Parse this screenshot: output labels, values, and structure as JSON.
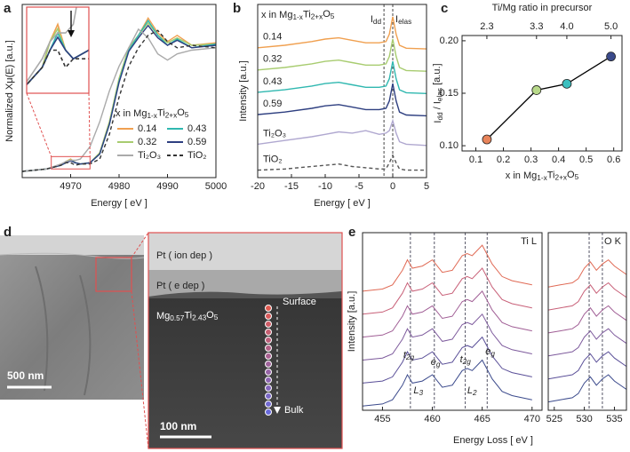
{
  "panel_labels": [
    "a",
    "b",
    "c",
    "d",
    "e"
  ],
  "chart_data": [
    {
      "type": "line",
      "ylabel": "Normalized Xμ(E) [a.u.]",
      "xlabel": "Energy  [ eV ]",
      "legend_title": [
        "x in Mg",
        "1-x",
        "Ti",
        "2+x",
        "O",
        "5"
      ],
      "x": [
        4960,
        4965,
        4968,
        4969,
        4970,
        4971,
        4972,
        4974,
        4976,
        4978,
        4980,
        4982,
        4984,
        4986,
        4988,
        4990,
        4992,
        4995,
        5000
      ],
      "xlim": [
        4960,
        5000
      ],
      "xticks": [
        4970,
        4980,
        4990,
        5000
      ],
      "ylim": [
        -0.05,
        1.35
      ],
      "inset": {
        "xlim": [
          4966,
          4974
        ],
        "ylim": [
          0.02,
          0.12
        ]
      },
      "series": [
        {
          "name": "0.14",
          "color": "#f0a050",
          "values": [
            0.0,
            0.02,
            0.05,
            0.08,
            0.1,
            0.07,
            0.06,
            0.07,
            0.15,
            0.4,
            0.75,
            1.0,
            1.1,
            1.24,
            1.12,
            1.05,
            1.1,
            1.02,
            1.04
          ]
        },
        {
          "name": "0.32",
          "color": "#a8cc70",
          "values": [
            0.0,
            0.02,
            0.05,
            0.08,
            0.095,
            0.07,
            0.06,
            0.07,
            0.15,
            0.4,
            0.75,
            1.0,
            1.1,
            1.2,
            1.1,
            1.04,
            1.08,
            1.02,
            1.03
          ]
        },
        {
          "name": "0.43",
          "color": "#30b8b0",
          "values": [
            0.0,
            0.02,
            0.05,
            0.07,
            0.09,
            0.07,
            0.06,
            0.07,
            0.14,
            0.38,
            0.73,
            0.98,
            1.1,
            1.22,
            1.1,
            1.02,
            1.07,
            1.0,
            1.03
          ]
        },
        {
          "name": "0.59",
          "color": "#2e3f80",
          "values": [
            0.0,
            0.02,
            0.05,
            0.07,
            0.085,
            0.07,
            0.06,
            0.07,
            0.14,
            0.38,
            0.72,
            0.97,
            1.08,
            1.18,
            1.08,
            1.02,
            1.06,
            1.0,
            1.02
          ]
        },
        {
          "name": "Ti₂O₃",
          "color": "#aaaaaa",
          "values": [
            0.0,
            0.02,
            0.06,
            0.08,
            0.09,
            0.09,
            0.1,
            0.2,
            0.4,
            0.65,
            0.85,
            1.0,
            1.15,
            1.08,
            0.95,
            0.9,
            0.95,
            0.98,
            1.0
          ]
        },
        {
          "name": "TiO₂",
          "color": "#333333",
          "dash": true,
          "values": [
            0.0,
            0.02,
            0.05,
            0.07,
            0.07,
            0.05,
            0.06,
            0.06,
            0.1,
            0.3,
            0.6,
            0.85,
            1.0,
            1.1,
            1.14,
            1.05,
            1.0,
            1.02,
            1.0
          ]
        }
      ]
    },
    {
      "type": "line",
      "ylabel": "Intensity [a.u.]",
      "xlabel": "Energy  [ eV ]",
      "legend_title": [
        "x in Mg",
        "1-x",
        "Ti",
        "2+x",
        "O",
        "5"
      ],
      "x": [
        -20,
        -16,
        -12,
        -10,
        -8,
        -6,
        -4,
        -2,
        -1,
        -0.5,
        0,
        0.5,
        1,
        2,
        5
      ],
      "xlim": [
        -20,
        5
      ],
      "xticks": [
        -20,
        -15,
        -10,
        -5,
        0,
        5
      ],
      "ylim": [
        0,
        7
      ],
      "markers": [
        -1.3,
        0
      ],
      "annotations": [
        [
          "I",
          "dd"
        ],
        [
          "I",
          "elas"
        ]
      ],
      "series": [
        {
          "name": "0.14",
          "color": "#f0a050",
          "values": [
            5.25,
            5.35,
            5.5,
            5.6,
            5.65,
            5.55,
            5.45,
            5.45,
            5.5,
            5.8,
            6.5,
            5.8,
            5.35,
            5.23,
            5.2
          ]
        },
        {
          "name": "0.32",
          "color": "#a8cc70",
          "values": [
            4.35,
            4.45,
            4.6,
            4.7,
            4.75,
            4.65,
            4.55,
            4.55,
            4.6,
            4.9,
            5.6,
            4.9,
            4.45,
            4.33,
            4.3
          ]
        },
        {
          "name": "0.43",
          "color": "#30b8b0",
          "values": [
            3.45,
            3.55,
            3.7,
            3.8,
            3.85,
            3.75,
            3.65,
            3.65,
            3.7,
            4.0,
            4.7,
            4.0,
            3.55,
            3.43,
            3.4
          ]
        },
        {
          "name": "0.59",
          "color": "#2e3f80",
          "values": [
            2.55,
            2.65,
            2.8,
            2.9,
            2.95,
            2.85,
            2.75,
            2.75,
            2.8,
            3.1,
            3.8,
            3.1,
            2.65,
            2.53,
            2.5
          ]
        },
        {
          "name": "Ti₂O₃",
          "color": "#b0a8d0",
          "values": [
            1.35,
            1.5,
            1.65,
            1.75,
            1.85,
            1.8,
            1.9,
            1.75,
            1.8,
            1.9,
            2.3,
            1.8,
            1.45,
            1.35,
            1.3
          ]
        },
        {
          "name": "TiO₂",
          "color": "#555555",
          "dash": true,
          "values": [
            0.3,
            0.35,
            0.45,
            0.5,
            0.55,
            0.45,
            0.4,
            0.35,
            0.35,
            0.6,
            0.9,
            0.6,
            0.35,
            0.3,
            0.3
          ]
        }
      ]
    },
    {
      "type": "scatter",
      "ylabel": [
        "I",
        "dd",
        " / I",
        "elas",
        " [a.u.]"
      ],
      "xlabel": [
        "x in Mg",
        "1-x",
        "Ti",
        "2+x",
        "O",
        "5"
      ],
      "x2label": "Ti/Mg ratio in precursor",
      "x": [
        0.14,
        0.32,
        0.43,
        0.59
      ],
      "values": [
        0.106,
        0.153,
        0.159,
        0.185
      ],
      "colors": [
        "#e8845a",
        "#b8d98a",
        "#3cbfbf",
        "#3a4a8a"
      ],
      "line_color": "#000000",
      "xlim": [
        0.05,
        0.63
      ],
      "xticks": [
        0.1,
        0.2,
        0.3,
        0.4,
        0.5,
        0.6
      ],
      "x2ticks": [
        {
          "value": 0.14,
          "label": "2.3"
        },
        {
          "value": 0.32,
          "label": "3.3"
        },
        {
          "value": 0.43,
          "label": "4.0"
        },
        {
          "value": 0.59,
          "label": "5.0"
        }
      ],
      "ylim": [
        0.095,
        0.205
      ],
      "yticks": [
        {
          "value": 0.1,
          "label": "0.10"
        },
        0.15,
        {
          "value": 0.2,
          "label": "0.20"
        }
      ]
    },
    {
      "type": "line",
      "ylabel": "Intensity [a.u.]",
      "xlabel": "Energy Loss  [ eV ]",
      "ylim": [
        0,
        8.5
      ],
      "annotations": [
        [
          "t",
          "2g"
        ],
        [
          "e",
          "g"
        ],
        [
          "t",
          "2g"
        ],
        [
          "e",
          "g"
        ],
        [
          "L",
          "3"
        ],
        [
          "L",
          "2"
        ]
      ],
      "panels": [
        {
          "title": "Ti L",
          "x": [
            453,
            455,
            456,
            457,
            457.5,
            458,
            459,
            460,
            461,
            462,
            463,
            463.5,
            464,
            465,
            466,
            467,
            468,
            470
          ],
          "xlim": [
            453,
            471
          ],
          "xticks": [
            455,
            460,
            465,
            470
          ],
          "markers": [
            457.8,
            460.2,
            463.3,
            465.5
          ],
          "series": [
            {
              "color": "#3b4a8c",
              "values": [
                0.2,
                0.3,
                0.5,
                1.2,
                1.7,
                1.3,
                1.4,
                1.7,
                1.1,
                1.2,
                1.9,
                2.0,
                1.9,
                2.4,
                1.5,
                0.9,
                0.7,
                0.5
              ]
            },
            {
              "color": "#5a4f98",
              "values": [
                1.3,
                1.4,
                1.6,
                2.3,
                2.8,
                2.4,
                2.5,
                2.8,
                2.2,
                2.3,
                3.0,
                3.1,
                3.0,
                3.5,
                2.6,
                2.0,
                1.8,
                1.6
              ]
            },
            {
              "color": "#7d5a9c",
              "values": [
                2.4,
                2.5,
                2.7,
                3.4,
                3.9,
                3.5,
                3.6,
                3.9,
                3.3,
                3.4,
                4.1,
                4.2,
                4.1,
                4.6,
                3.7,
                3.1,
                2.9,
                2.7
              ]
            },
            {
              "color": "#a05e95",
              "values": [
                3.5,
                3.6,
                3.8,
                4.5,
                5.0,
                4.6,
                4.7,
                5.0,
                4.4,
                4.5,
                5.2,
                5.3,
                5.2,
                5.7,
                4.8,
                4.2,
                4.0,
                3.8
              ]
            },
            {
              "color": "#c86078",
              "values": [
                4.6,
                4.7,
                4.9,
                5.6,
                6.1,
                5.7,
                5.8,
                6.1,
                5.5,
                5.6,
                6.3,
                6.4,
                6.3,
                6.8,
                5.9,
                5.3,
                5.1,
                4.9
              ]
            },
            {
              "color": "#e06a55",
              "values": [
                5.7,
                5.8,
                6.0,
                6.7,
                7.2,
                6.8,
                6.9,
                7.2,
                6.6,
                6.7,
                7.4,
                7.5,
                7.4,
                7.9,
                7.0,
                6.4,
                6.2,
                6.0
              ]
            }
          ]
        },
        {
          "title": "O K",
          "x": [
            524,
            526,
            528,
            529,
            530,
            531,
            532,
            533,
            534,
            535,
            537
          ],
          "xlim": [
            524,
            537
          ],
          "xticks": [
            525,
            530,
            535
          ],
          "markers": [
            530.8,
            533
          ],
          "series": [
            {
              "color": "#3b4a8c",
              "values": [
                0.4,
                0.5,
                0.6,
                0.8,
                1.3,
                1.6,
                1.2,
                1.5,
                1.7,
                1.4,
                1.0
              ]
            },
            {
              "color": "#5a4f98",
              "values": [
                1.5,
                1.6,
                1.7,
                1.9,
                2.4,
                2.7,
                2.3,
                2.6,
                2.8,
                2.5,
                2.1
              ]
            },
            {
              "color": "#7d5a9c",
              "values": [
                2.6,
                2.7,
                2.8,
                3.0,
                3.5,
                3.8,
                3.4,
                3.7,
                3.9,
                3.6,
                3.2
              ]
            },
            {
              "color": "#a05e95",
              "values": [
                3.7,
                3.8,
                3.9,
                4.1,
                4.6,
                4.9,
                4.5,
                4.8,
                5.0,
                4.7,
                4.3
              ]
            },
            {
              "color": "#c86078",
              "values": [
                4.8,
                4.9,
                5.0,
                5.2,
                5.7,
                6.0,
                5.6,
                5.9,
                6.1,
                5.8,
                5.4
              ]
            },
            {
              "color": "#e06a55",
              "values": [
                5.9,
                6.0,
                6.1,
                6.3,
                6.8,
                7.1,
                6.7,
                7.0,
                7.2,
                6.9,
                6.5
              ]
            }
          ]
        }
      ]
    }
  ],
  "micrograph": {
    "scale_bar_overview": "500 nm",
    "scale_bar_zoom": "100 nm",
    "layers": [
      "Pt ( ion dep )",
      "Pt ( e dep )"
    ],
    "composition": [
      "Mg",
      "0.57",
      "Ti",
      "2.43",
      "O",
      "5"
    ],
    "surface": "Surface",
    "bulk": "Bulk"
  }
}
